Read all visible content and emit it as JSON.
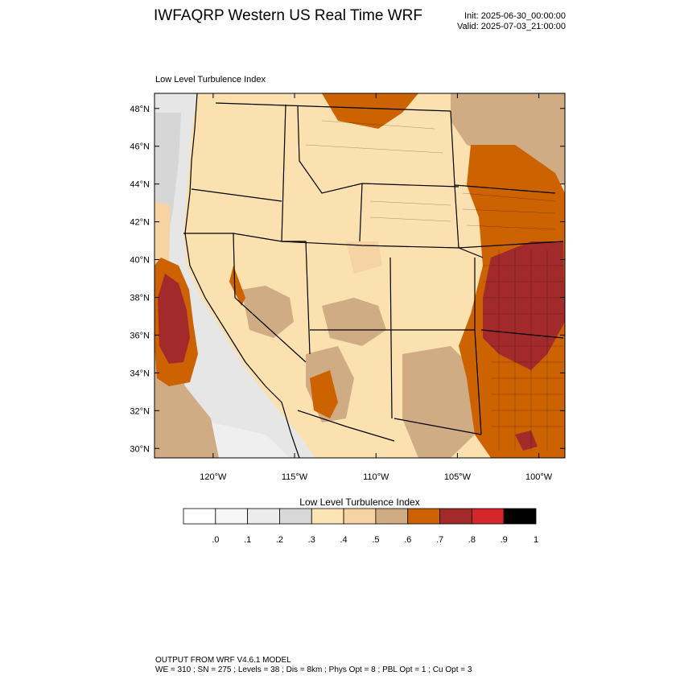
{
  "header": {
    "title": "IWFAQRP Western US Real Time WRF",
    "init": "Init: 2025-06-30_00:00:00",
    "valid": "Valid: 2025-07-03_21:00:00"
  },
  "map": {
    "subtitle": "Low Level Turbulence Index",
    "lat_labels": [
      "48°N",
      "46°N",
      "44°N",
      "42°N",
      "40°N",
      "38°N",
      "36°N",
      "34°N",
      "32°N",
      "30°N"
    ],
    "lat_values": [
      48,
      46,
      44,
      42,
      40,
      38,
      36,
      34,
      32,
      30
    ],
    "lon_labels": [
      "120°W",
      "115°W",
      "110°W",
      "105°W",
      "100°W"
    ],
    "lon_values": [
      -120,
      -115,
      -110,
      -105,
      -100
    ],
    "lon_range": [
      -123.6,
      -98.4
    ],
    "lat_range": [
      29.5,
      48.8
    ]
  },
  "colorbar": {
    "title": "Low Level Turbulence Index",
    "labels": [
      ".0",
      ".1",
      ".2",
      ".3",
      ".4",
      ".5",
      ".6",
      ".7",
      ".8",
      ".9",
      "1"
    ],
    "colors": [
      "#ffffff",
      "#f6f6f6",
      "#ececec",
      "#d8d8d8",
      "#fde4b4",
      "#f5d3a2",
      "#cfac84",
      "#cc6200",
      "#a32a2a",
      "#d5262b",
      "#000000"
    ]
  },
  "footer": {
    "line1": "OUTPUT FROM WRF V4.6.1 MODEL",
    "line2": "WE = 310 ; SN = 275 ; Levels = 38 ; Dis = 8km ; Phys Opt = 8 ; PBL Opt = 1 ; Cu Opt = 3"
  }
}
